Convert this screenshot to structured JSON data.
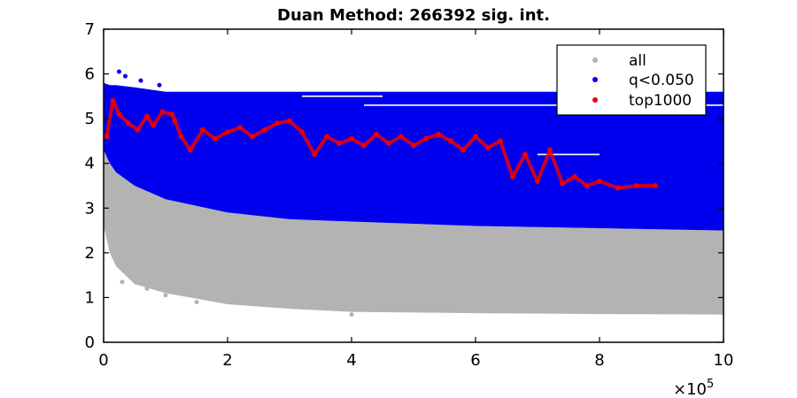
{
  "chart_data": {
    "type": "scatter",
    "title": "Duan Method: 266392 sig. int.",
    "xlabel": "",
    "ylabel": "",
    "x_multiplier_label": "×10",
    "x_multiplier_exponent": "5",
    "xlim": [
      0,
      1000000
    ],
    "ylim": [
      0,
      7
    ],
    "x_ticks": [
      0,
      200000,
      400000,
      600000,
      800000,
      1000000
    ],
    "x_tick_labels": [
      "0",
      "2",
      "4",
      "6",
      "8",
      "10"
    ],
    "y_ticks": [
      0,
      1,
      2,
      3,
      4,
      5,
      6,
      7
    ],
    "y_tick_labels": [
      "0",
      "1",
      "2",
      "3",
      "4",
      "5",
      "6",
      "7"
    ],
    "grid": false,
    "legend_position": "top-right",
    "series": [
      {
        "name": "all",
        "color": "#b3b3b3",
        "region": {
          "x": [
            0,
            10000,
            20000,
            50000,
            100000,
            200000,
            300000,
            400000,
            600000,
            800000,
            1000000
          ],
          "lower": [
            2.6,
            2.0,
            1.7,
            1.3,
            1.1,
            0.85,
            0.75,
            0.68,
            0.65,
            0.63,
            0.62
          ],
          "upper": [
            4.3,
            4.0,
            3.8,
            3.5,
            3.2,
            2.9,
            2.75,
            2.7,
            2.6,
            2.55,
            2.5
          ]
        },
        "outliers": {
          "x": [
            30000,
            70000,
            100000,
            150000,
            400000
          ],
          "y": [
            1.35,
            1.2,
            1.05,
            0.9,
            0.62
          ]
        }
      },
      {
        "name": "q<0.050",
        "color": "#0000ee",
        "region": {
          "x": [
            0,
            10000,
            20000,
            50000,
            100000,
            200000,
            300000,
            400000,
            600000,
            800000,
            1000000
          ],
          "lower": [
            4.3,
            4.0,
            3.8,
            3.5,
            3.2,
            2.9,
            2.75,
            2.7,
            2.6,
            2.55,
            2.5
          ],
          "upper": [
            5.8,
            5.75,
            5.75,
            5.7,
            5.6,
            5.6,
            5.6,
            5.6,
            5.6,
            5.6,
            5.6
          ]
        },
        "outliers": {
          "x": [
            25000,
            35000,
            60000,
            90000
          ],
          "y": [
            6.05,
            5.95,
            5.85,
            5.75
          ]
        },
        "gaps": [
          {
            "x": [
              320000,
              450000
            ],
            "y": 5.5
          },
          {
            "x": [
              420000,
              1000000
            ],
            "y": 5.3
          },
          {
            "x": [
              700000,
              800000
            ],
            "y": 4.2
          }
        ]
      },
      {
        "name": "top1000",
        "color": "#ee0000",
        "x": [
          5000,
          15000,
          25000,
          40000,
          55000,
          70000,
          80000,
          95000,
          110000,
          115000,
          125000,
          140000,
          160000,
          180000,
          200000,
          220000,
          240000,
          260000,
          280000,
          300000,
          320000,
          340000,
          360000,
          380000,
          400000,
          420000,
          440000,
          460000,
          480000,
          500000,
          520000,
          540000,
          560000,
          580000,
          600000,
          620000,
          640000,
          660000,
          680000,
          700000,
          720000,
          740000,
          760000,
          780000,
          800000,
          830000,
          860000,
          890000
        ],
        "y": [
          4.6,
          5.4,
          5.1,
          4.9,
          4.75,
          5.05,
          4.85,
          5.15,
          5.1,
          4.95,
          4.6,
          4.3,
          4.75,
          4.55,
          4.7,
          4.8,
          4.6,
          4.75,
          4.9,
          4.95,
          4.7,
          4.2,
          4.6,
          4.45,
          4.55,
          4.4,
          4.65,
          4.45,
          4.6,
          4.4,
          4.55,
          4.65,
          4.5,
          4.3,
          4.6,
          4.35,
          4.5,
          3.7,
          4.2,
          3.6,
          4.3,
          3.55,
          3.7,
          3.5,
          3.6,
          3.45,
          3.5,
          3.5
        ]
      }
    ]
  }
}
